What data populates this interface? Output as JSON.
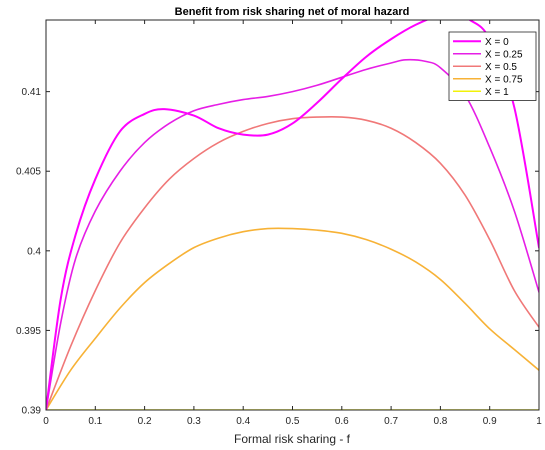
{
  "chart_data": {
    "type": "line",
    "title": "Benefit from risk sharing net of moral hazard",
    "xlabel": "Formal risk sharing - f",
    "ylabel": "",
    "xlim": [
      0,
      1
    ],
    "ylim": [
      0.39,
      0.4145
    ],
    "xticks": [
      0,
      0.1,
      0.2,
      0.3,
      0.4,
      0.5,
      0.6,
      0.7,
      0.8,
      0.9,
      1
    ],
    "xtick_labels": [
      "0",
      "0.1",
      "0.2",
      "0.3",
      "0.4",
      "0.5",
      "0.6",
      "0.7",
      "0.8",
      "0.9",
      "1"
    ],
    "yticks": [
      0.39,
      0.395,
      0.4,
      0.405,
      0.41
    ],
    "ytick_labels": [
      "0.39",
      "0.395",
      "0.4",
      "0.405",
      "0.41"
    ],
    "grid": false,
    "legend_position": "top-right",
    "series": [
      {
        "name": "X = 0",
        "color": "#ff00ff",
        "x": [
          0,
          0.03,
          0.06,
          0.1,
          0.15,
          0.2,
          0.24,
          0.3,
          0.35,
          0.4,
          0.45,
          0.5,
          0.55,
          0.6,
          0.65,
          0.7,
          0.75,
          0.8,
          0.83,
          0.86,
          0.9,
          0.95,
          1
        ],
        "y": [
          0.39,
          0.397,
          0.401,
          0.4045,
          0.4075,
          0.4086,
          0.4089,
          0.4085,
          0.4077,
          0.4073,
          0.4073,
          0.408,
          0.4093,
          0.4108,
          0.4122,
          0.4133,
          0.4142,
          0.4148,
          0.4148,
          0.4145,
          0.4133,
          0.409,
          0.4002
        ]
      },
      {
        "name": "X = 0.25",
        "color": "#e61ee6",
        "x": [
          0,
          0.03,
          0.06,
          0.1,
          0.15,
          0.2,
          0.25,
          0.3,
          0.35,
          0.4,
          0.45,
          0.5,
          0.55,
          0.6,
          0.65,
          0.7,
          0.73,
          0.77,
          0.8,
          0.85,
          0.9,
          0.95,
          1
        ],
        "y": [
          0.39,
          0.3955,
          0.3995,
          0.4025,
          0.405,
          0.4068,
          0.408,
          0.4088,
          0.4092,
          0.4095,
          0.4097,
          0.41,
          0.4104,
          0.4109,
          0.4114,
          0.4118,
          0.412,
          0.4119,
          0.4115,
          0.4098,
          0.4065,
          0.4025,
          0.3974
        ]
      },
      {
        "name": "X = 0.5",
        "color": "#f07878",
        "x": [
          0,
          0.05,
          0.1,
          0.15,
          0.2,
          0.25,
          0.3,
          0.35,
          0.4,
          0.45,
          0.5,
          0.55,
          0.6,
          0.65,
          0.7,
          0.75,
          0.8,
          0.85,
          0.9,
          0.95,
          1
        ],
        "y": [
          0.39,
          0.394,
          0.3975,
          0.4005,
          0.4027,
          0.4045,
          0.4058,
          0.4068,
          0.4075,
          0.408,
          0.4083,
          0.4084,
          0.4084,
          0.4082,
          0.4077,
          0.4068,
          0.4055,
          0.4035,
          0.4007,
          0.3975,
          0.3952
        ]
      },
      {
        "name": "X = 0.75",
        "color": "#f7b236",
        "x": [
          0,
          0.05,
          0.1,
          0.15,
          0.2,
          0.25,
          0.3,
          0.35,
          0.4,
          0.45,
          0.5,
          0.55,
          0.6,
          0.65,
          0.7,
          0.75,
          0.8,
          0.85,
          0.9,
          0.95,
          1
        ],
        "y": [
          0.39,
          0.3925,
          0.3945,
          0.3964,
          0.398,
          0.3992,
          0.4002,
          0.4008,
          0.4012,
          0.4014,
          0.4014,
          0.4013,
          0.4011,
          0.4007,
          0.4001,
          0.3993,
          0.3982,
          0.3967,
          0.3951,
          0.3938,
          0.3925
        ]
      },
      {
        "name": "X = 1",
        "color": "#f2f20a",
        "x": [
          0,
          1
        ],
        "y": [
          0.39,
          0.39
        ]
      }
    ]
  }
}
